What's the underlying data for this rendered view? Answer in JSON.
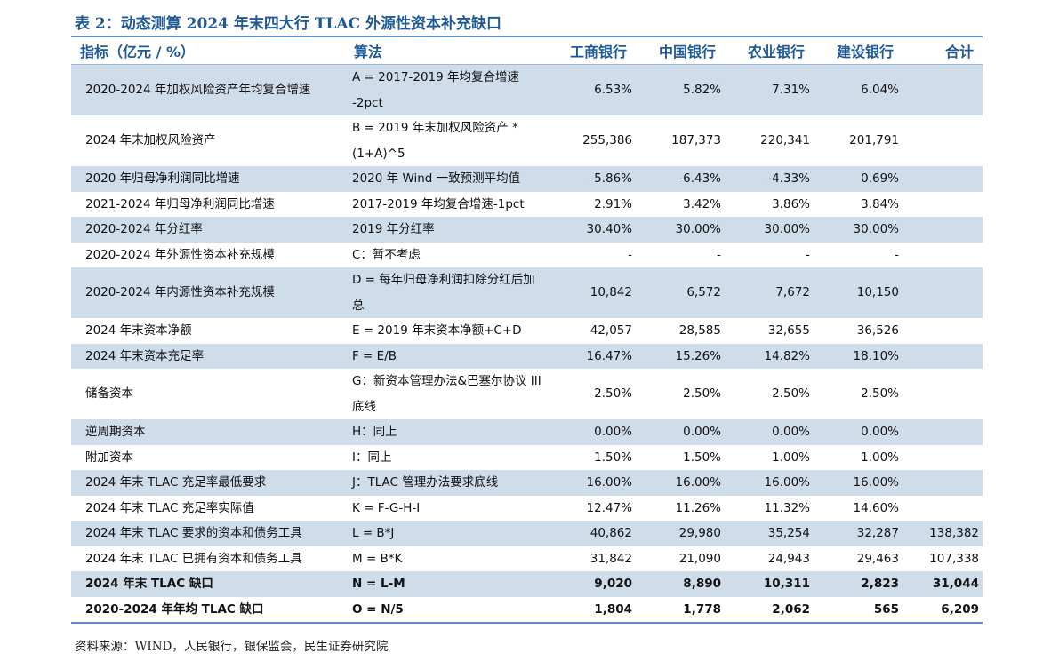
{
  "title": "表 2：动态测算 2024 年末四大行 TLAC 外源性资本补充缺口",
  "columns": [
    "指标（亿元 / %）",
    "算法",
    "工商银行",
    "中国银行",
    "农业银行",
    "建设银行",
    "合计"
  ],
  "rows": [
    {
      "shade": true,
      "bold": false,
      "cells": [
        "2020-2024 年加权风险资产年均复合增速",
        "A = 2017-2019 年均复合增速 -2pct",
        "6.53%",
        "5.82%",
        "7.31%",
        "6.04%",
        ""
      ]
    },
    {
      "shade": false,
      "bold": false,
      "cells": [
        "2024 年末加权风险资产",
        "B = 2019 年末加权风险资产 *(1+A)^5",
        "255,386",
        "187,373",
        "220,341",
        "201,791",
        ""
      ]
    },
    {
      "shade": true,
      "bold": false,
      "cells": [
        "2020 年归母净利润同比增速",
        "2020 年 Wind 一致预测平均值",
        "-5.86%",
        "-6.43%",
        "-4.33%",
        "0.69%",
        ""
      ]
    },
    {
      "shade": false,
      "bold": false,
      "cells": [
        "2021-2024 年归母净利润同比增速",
        "2017-2019 年均复合增速-1pct",
        "2.91%",
        "3.42%",
        "3.86%",
        "3.84%",
        ""
      ]
    },
    {
      "shade": true,
      "bold": false,
      "cells": [
        "2020-2024 年分红率",
        "2019 年分红率",
        "30.40%",
        "30.00%",
        "30.00%",
        "30.00%",
        ""
      ]
    },
    {
      "shade": false,
      "bold": false,
      "cells": [
        "2020-2024 年外源性资本补充规模",
        "C：暂不考虑",
        "-",
        "-",
        "-",
        "-",
        ""
      ]
    },
    {
      "shade": true,
      "bold": false,
      "cells": [
        "2020-2024 年内源性资本补充规模",
        "D = 每年归母净利润扣除分红后加总",
        "10,842",
        "6,572",
        "7,672",
        "10,150",
        ""
      ]
    },
    {
      "shade": false,
      "bold": false,
      "cells": [
        "2024 年末资本净额",
        "E = 2019 年末资本净额+C+D",
        "42,057",
        "28,585",
        "32,655",
        "36,526",
        ""
      ]
    },
    {
      "shade": true,
      "bold": false,
      "cells": [
        "2024 年末资本充足率",
        "F = E/B",
        "16.47%",
        "15.26%",
        "14.82%",
        "18.10%",
        ""
      ]
    },
    {
      "shade": false,
      "bold": false,
      "cells": [
        "储备资本",
        "G：新资本管理办法&巴塞尔协议 III 底线",
        "2.50%",
        "2.50%",
        "2.50%",
        "2.50%",
        ""
      ]
    },
    {
      "shade": true,
      "bold": false,
      "cells": [
        "逆周期资本",
        "H：同上",
        "0.00%",
        "0.00%",
        "0.00%",
        "0.00%",
        ""
      ]
    },
    {
      "shade": false,
      "bold": false,
      "cells": [
        "附加资本",
        "I：同上",
        "1.50%",
        "1.50%",
        "1.00%",
        "1.00%",
        ""
      ]
    },
    {
      "shade": true,
      "bold": false,
      "cells": [
        "2024 年末 TLAC 充足率最低要求",
        "J：TLAC 管理办法要求底线",
        "16.00%",
        "16.00%",
        "16.00%",
        "16.00%",
        ""
      ]
    },
    {
      "shade": false,
      "bold": false,
      "cells": [
        "2024 年末 TLAC 充足率实际值",
        "K = F-G-H-I",
        "12.47%",
        "11.26%",
        "11.32%",
        "14.60%",
        ""
      ]
    },
    {
      "shade": true,
      "bold": false,
      "cells": [
        "2024 年末 TLAC 要求的资本和债务工具",
        "L = B*J",
        "40,862",
        "29,980",
        "35,254",
        "32,287",
        "138,382"
      ]
    },
    {
      "shade": false,
      "bold": false,
      "cells": [
        "2024 年末 TLAC 已拥有资本和债务工具",
        "M = B*K",
        "31,842",
        "21,090",
        "24,943",
        "29,463",
        "107,338"
      ]
    },
    {
      "shade": true,
      "bold": true,
      "cells": [
        "2024 年末 TLAC 缺口",
        "N = L-M",
        "9,020",
        "8,890",
        "10,311",
        "2,823",
        "31,044"
      ]
    },
    {
      "shade": false,
      "bold": true,
      "cells": [
        "2020-2024 年年均 TLAC 缺口",
        "O = N/5",
        "1,804",
        "1,778",
        "2,062",
        "565",
        "6,209"
      ]
    }
  ],
  "footer": "资料来源：WIND，人民银行，银保监会，民生证券研究院"
}
